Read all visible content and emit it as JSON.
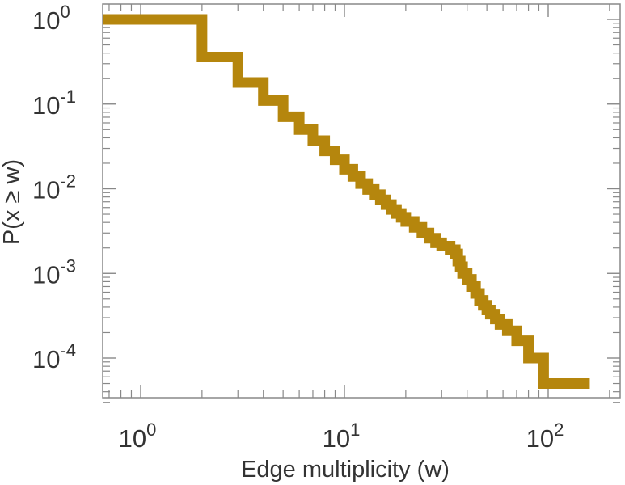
{
  "chart_data": {
    "type": "line",
    "step": true,
    "title": "",
    "xlabel": "Edge multiplicity (w)",
    "ylabel": "P(x ≥ w)",
    "xscale": "log",
    "yscale": "log",
    "xlim": [
      0.7,
      200
    ],
    "ylim": [
      3e-05,
      1.4
    ],
    "grid": false,
    "legend": "none",
    "line_color": "#b5860d",
    "x_ticks": [
      {
        "value": 1,
        "base": "10",
        "exp": "0"
      },
      {
        "value": 10,
        "base": "10",
        "exp": "1"
      },
      {
        "value": 100,
        "base": "10",
        "exp": "2"
      }
    ],
    "y_ticks": [
      {
        "value": 1,
        "base": "10",
        "exp": "0"
      },
      {
        "value": 0.1,
        "base": "10",
        "exp": "-1"
      },
      {
        "value": 0.01,
        "base": "10",
        "exp": "-2"
      },
      {
        "value": 0.001,
        "base": "10",
        "exp": "-3"
      },
      {
        "value": 0.0001,
        "base": "10",
        "exp": "-4"
      }
    ],
    "series": [
      {
        "x": [
          1,
          2,
          3,
          4,
          5,
          6,
          7,
          8,
          9,
          10,
          11,
          12,
          13,
          14,
          15,
          16,
          17,
          18,
          19,
          20,
          22,
          24,
          26,
          28,
          30,
          33,
          35,
          36,
          37,
          38,
          40,
          42,
          44,
          46,
          48,
          50,
          52,
          55,
          58,
          63,
          70,
          80,
          95,
          160
        ],
        "y": [
          1,
          0.36,
          0.18,
          0.11,
          0.071,
          0.05,
          0.037,
          0.028,
          0.022,
          0.017,
          0.014,
          0.0115,
          0.0098,
          0.0085,
          0.0074,
          0.0065,
          0.0057,
          0.0051,
          0.0046,
          0.0041,
          0.0035,
          0.003,
          0.0026,
          0.0023,
          0.0021,
          0.0019,
          0.0017,
          0.0014,
          0.0012,
          0.001,
          0.00085,
          0.0007,
          0.00058,
          0.00048,
          0.00042,
          0.00037,
          0.00033,
          0.00029,
          0.00025,
          0.00021,
          0.00016,
          0.0001,
          5e-05,
          5e-05
        ]
      }
    ]
  }
}
